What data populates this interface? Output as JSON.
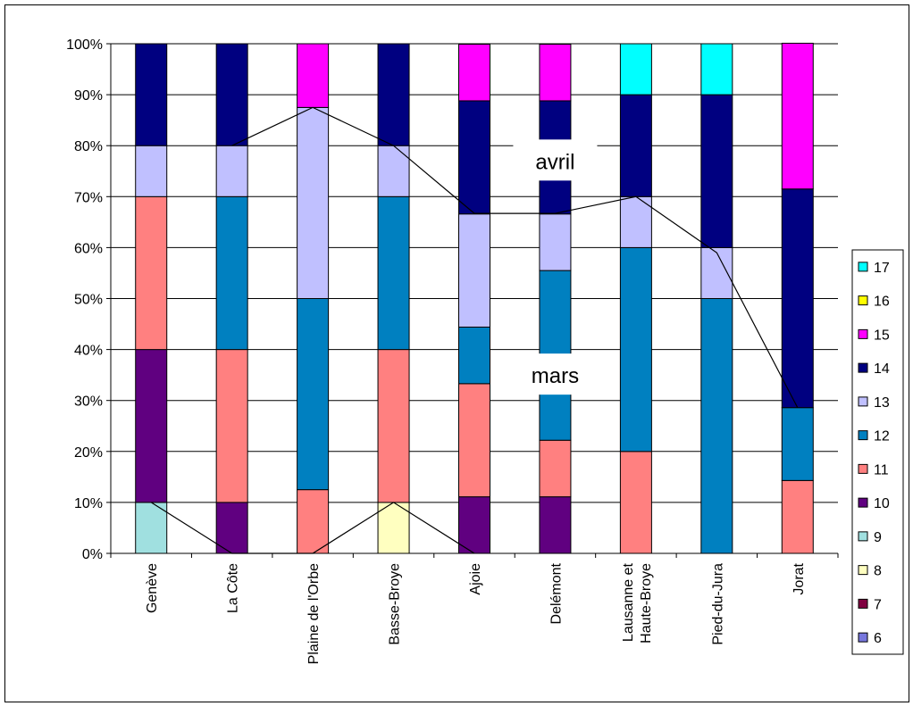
{
  "chart_data": {
    "type": "bar",
    "stacked": "percent",
    "title": "",
    "xlabel": "",
    "ylabel": "",
    "ylim": [
      0,
      100
    ],
    "yticks": [
      "0%",
      "10%",
      "20%",
      "30%",
      "40%",
      "50%",
      "60%",
      "70%",
      "80%",
      "90%",
      "100%"
    ],
    "grid": true,
    "legend_position": "right",
    "categories": [
      "Genève",
      "La Côte",
      "Plaine de l'Orbe",
      "Basse-Broye",
      "Ajoie",
      "Delémont",
      "Lausanne et\nHaute-Broye",
      "Pied-du-Jura",
      "Jorat"
    ],
    "series": [
      {
        "name": "6",
        "color": "#7777DD",
        "values": [
          0,
          0,
          0,
          0,
          0,
          0,
          0,
          0,
          0
        ]
      },
      {
        "name": "7",
        "color": "#800040",
        "values": [
          0,
          0,
          0,
          0,
          0,
          0,
          0,
          0,
          0
        ]
      },
      {
        "name": "8",
        "color": "#FFFFC0",
        "values": [
          0,
          0,
          0,
          10,
          0,
          0,
          0,
          0,
          0
        ]
      },
      {
        "name": "9",
        "color": "#A0E0E0",
        "values": [
          10,
          0,
          0,
          0,
          0,
          0,
          0,
          0,
          0
        ]
      },
      {
        "name": "10",
        "color": "#600080",
        "values": [
          30,
          10,
          0,
          0,
          11.1,
          11.1,
          0,
          0,
          0
        ]
      },
      {
        "name": "11",
        "color": "#FF8080",
        "values": [
          30,
          30,
          12.5,
          30,
          22.2,
          11.1,
          20,
          0,
          14.3
        ]
      },
      {
        "name": "12",
        "color": "#0080C0",
        "values": [
          0,
          30,
          37.5,
          30,
          11.1,
          33.3,
          40,
          50,
          14.3
        ]
      },
      {
        "name": "13",
        "color": "#C0C0FF",
        "values": [
          10,
          10,
          37.5,
          10,
          22.2,
          11.1,
          10,
          10,
          0
        ]
      },
      {
        "name": "14",
        "color": "#000080",
        "values": [
          20,
          20,
          0,
          20,
          22.2,
          22.2,
          20,
          30,
          42.9
        ]
      },
      {
        "name": "15",
        "color": "#FF00FF",
        "values": [
          0,
          0,
          12.5,
          0,
          11.1,
          11.1,
          0,
          0,
          28.6
        ]
      },
      {
        "name": "16",
        "color": "#FFFF00",
        "values": [
          0,
          0,
          0,
          0,
          0,
          0,
          0,
          0,
          0
        ]
      },
      {
        "name": "17",
        "color": "#00FFFF",
        "values": [
          0,
          0,
          0,
          0,
          0,
          0,
          10,
          10,
          0
        ]
      }
    ],
    "annotations": [
      {
        "text": "avril",
        "x_category": "Delémont",
        "y": 77
      },
      {
        "text": "mars",
        "x_category": "Delémont",
        "y": 35
      }
    ],
    "lines": [
      {
        "name": "avril-line",
        "points": [
          {
            "category": "La Côte",
            "y": 80
          },
          {
            "category": "Plaine de l'Orbe",
            "y": 87.5
          },
          {
            "category": "Basse-Broye",
            "y": 80
          },
          {
            "category": "Ajoie",
            "y": 66.7
          },
          {
            "category": "Delémont",
            "y": 66.7
          },
          {
            "category": "Lausanne et\nHaute-Broye",
            "y": 70
          },
          {
            "category": "Pied-du-Jura",
            "y": 59
          },
          {
            "category": "Jorat",
            "y": 28.6
          }
        ]
      },
      {
        "name": "mars-line",
        "points": [
          {
            "category": "Genève",
            "y": 10
          },
          {
            "category": "La Côte",
            "y": 0
          },
          {
            "category": "Plaine de l'Orbe",
            "y": 0
          },
          {
            "category": "Basse-Broye",
            "y": 10
          },
          {
            "category": "Ajoie",
            "y": 0
          }
        ]
      }
    ]
  }
}
